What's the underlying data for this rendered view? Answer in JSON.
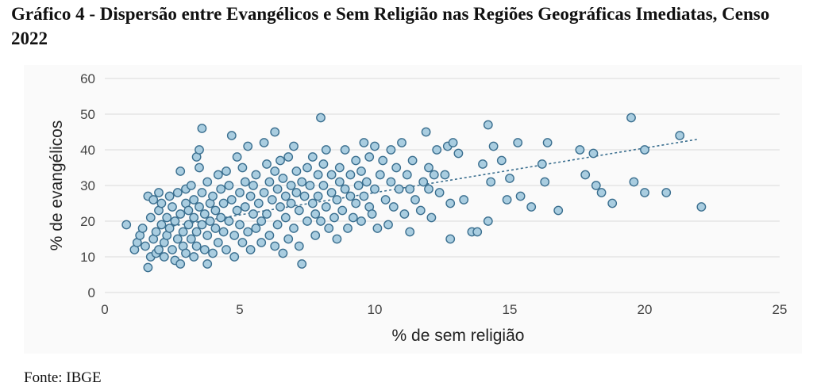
{
  "title": "Gráfico 4 - Dispersão entre Evangélicos e Sem Religião nas Regiões Geográficas Imediatas, Censo 2022",
  "source": "Fonte: IBGE",
  "colors": {
    "point_fill": "#a9cde0",
    "point_stroke": "#3b6f8f",
    "trendline": "#3b6f8f",
    "grid": "#d9d9d9"
  },
  "chart_data": {
    "type": "scatter",
    "xlabel": "% de sem religião",
    "ylabel": "% de evangélicos",
    "xlim": [
      0,
      25
    ],
    "ylim": [
      0,
      60
    ],
    "xticks": [
      0,
      5,
      10,
      15,
      20,
      25
    ],
    "yticks": [
      0,
      10,
      20,
      30,
      40,
      50,
      60
    ],
    "grid": "horizontal",
    "trendline": {
      "style": "dashed",
      "x": [
        2.0,
        22.0
      ],
      "y": [
        18.0,
        43.0
      ]
    },
    "series": [
      {
        "points": [
          [
            0.8,
            19
          ],
          [
            1.1,
            12
          ],
          [
            1.2,
            14
          ],
          [
            1.3,
            16
          ],
          [
            1.4,
            18
          ],
          [
            1.5,
            13
          ],
          [
            1.6,
            27
          ],
          [
            1.6,
            7
          ],
          [
            1.7,
            10
          ],
          [
            1.7,
            21
          ],
          [
            1.8,
            26
          ],
          [
            1.8,
            15
          ],
          [
            1.9,
            11
          ],
          [
            1.9,
            17
          ],
          [
            2.0,
            28
          ],
          [
            2.0,
            23
          ],
          [
            2.0,
            12
          ],
          [
            2.1,
            19
          ],
          [
            2.1,
            25
          ],
          [
            2.2,
            14
          ],
          [
            2.2,
            10
          ],
          [
            2.3,
            21
          ],
          [
            2.3,
            16
          ],
          [
            2.4,
            18
          ],
          [
            2.4,
            27
          ],
          [
            2.5,
            12
          ],
          [
            2.5,
            24
          ],
          [
            2.6,
            9
          ],
          [
            2.6,
            20
          ],
          [
            2.7,
            15
          ],
          [
            2.7,
            28
          ],
          [
            2.8,
            34
          ],
          [
            2.8,
            22
          ],
          [
            2.8,
            8
          ],
          [
            2.9,
            17
          ],
          [
            2.9,
            13
          ],
          [
            3.0,
            25
          ],
          [
            3.0,
            29
          ],
          [
            3.0,
            11
          ],
          [
            3.1,
            19
          ],
          [
            3.1,
            23
          ],
          [
            3.2,
            15
          ],
          [
            3.2,
            30
          ],
          [
            3.3,
            10
          ],
          [
            3.3,
            21
          ],
          [
            3.3,
            26
          ],
          [
            3.4,
            38
          ],
          [
            3.4,
            17
          ],
          [
            3.4,
            13
          ],
          [
            3.5,
            40
          ],
          [
            3.5,
            24
          ],
          [
            3.5,
            35
          ],
          [
            3.6,
            46
          ],
          [
            3.6,
            19
          ],
          [
            3.6,
            28
          ],
          [
            3.7,
            12
          ],
          [
            3.7,
            22
          ],
          [
            3.8,
            8
          ],
          [
            3.8,
            31
          ],
          [
            3.8,
            16
          ],
          [
            3.9,
            25
          ],
          [
            3.9,
            20
          ],
          [
            4.0,
            11
          ],
          [
            4.0,
            27
          ],
          [
            4.1,
            18
          ],
          [
            4.1,
            23
          ],
          [
            4.2,
            33
          ],
          [
            4.2,
            14
          ],
          [
            4.3,
            29
          ],
          [
            4.3,
            21
          ],
          [
            4.4,
            17
          ],
          [
            4.4,
            25
          ],
          [
            4.5,
            12
          ],
          [
            4.5,
            34
          ],
          [
            4.6,
            30
          ],
          [
            4.6,
            20
          ],
          [
            4.7,
            26
          ],
          [
            4.7,
            44
          ],
          [
            4.8,
            16
          ],
          [
            4.8,
            10
          ],
          [
            4.9,
            38
          ],
          [
            4.9,
            23
          ],
          [
            5.0,
            28
          ],
          [
            5.0,
            19
          ],
          [
            5.1,
            35
          ],
          [
            5.1,
            14
          ],
          [
            5.2,
            31
          ],
          [
            5.2,
            24
          ],
          [
            5.3,
            41
          ],
          [
            5.3,
            17
          ],
          [
            5.4,
            27
          ],
          [
            5.4,
            12
          ],
          [
            5.5,
            22
          ],
          [
            5.5,
            30
          ],
          [
            5.6,
            33
          ],
          [
            5.6,
            18
          ],
          [
            5.7,
            25
          ],
          [
            5.8,
            14
          ],
          [
            5.8,
            20
          ],
          [
            5.9,
            42
          ],
          [
            5.9,
            28
          ],
          [
            6.0,
            36
          ],
          [
            6.0,
            22
          ],
          [
            6.1,
            16
          ],
          [
            6.1,
            31
          ],
          [
            6.2,
            26
          ],
          [
            6.3,
            45
          ],
          [
            6.3,
            34
          ],
          [
            6.3,
            13
          ],
          [
            6.4,
            29
          ],
          [
            6.4,
            19
          ],
          [
            6.5,
            37
          ],
          [
            6.5,
            24
          ],
          [
            6.6,
            11
          ],
          [
            6.6,
            32
          ],
          [
            6.7,
            27
          ],
          [
            6.7,
            21
          ],
          [
            6.8,
            38
          ],
          [
            6.8,
            15
          ],
          [
            6.9,
            30
          ],
          [
            6.9,
            25
          ],
          [
            7.0,
            41
          ],
          [
            7.0,
            18
          ],
          [
            7.1,
            34
          ],
          [
            7.1,
            28
          ],
          [
            7.2,
            13
          ],
          [
            7.2,
            23
          ],
          [
            7.3,
            8
          ],
          [
            7.3,
            31
          ],
          [
            7.4,
            27
          ],
          [
            7.5,
            35
          ],
          [
            7.5,
            20
          ],
          [
            7.6,
            30
          ],
          [
            7.7,
            25
          ],
          [
            7.7,
            38
          ],
          [
            7.8,
            22
          ],
          [
            7.8,
            16
          ],
          [
            7.9,
            33
          ],
          [
            7.9,
            27
          ],
          [
            8.0,
            49
          ],
          [
            8.0,
            20
          ],
          [
            8.1,
            30
          ],
          [
            8.1,
            36
          ],
          [
            8.2,
            40
          ],
          [
            8.2,
            24
          ],
          [
            8.3,
            18
          ],
          [
            8.4,
            28
          ],
          [
            8.4,
            33
          ],
          [
            8.5,
            21
          ],
          [
            8.6,
            26
          ],
          [
            8.6,
            15
          ],
          [
            8.7,
            31
          ],
          [
            8.7,
            35
          ],
          [
            8.8,
            23
          ],
          [
            8.9,
            29
          ],
          [
            8.9,
            40
          ],
          [
            9.0,
            18
          ],
          [
            9.1,
            33
          ],
          [
            9.1,
            27
          ],
          [
            9.2,
            21
          ],
          [
            9.3,
            37
          ],
          [
            9.3,
            25
          ],
          [
            9.4,
            30
          ],
          [
            9.5,
            34
          ],
          [
            9.5,
            20
          ],
          [
            9.6,
            42
          ],
          [
            9.6,
            27
          ],
          [
            9.7,
            31
          ],
          [
            9.8,
            24
          ],
          [
            9.8,
            38
          ],
          [
            9.9,
            22
          ],
          [
            10.0,
            41
          ],
          [
            10.0,
            29
          ],
          [
            10.1,
            18
          ],
          [
            10.2,
            33
          ],
          [
            10.3,
            37
          ],
          [
            10.4,
            26
          ],
          [
            10.5,
            19
          ],
          [
            10.6,
            40
          ],
          [
            10.6,
            31
          ],
          [
            10.7,
            24
          ],
          [
            10.8,
            35
          ],
          [
            10.9,
            29
          ],
          [
            11.0,
            42
          ],
          [
            11.1,
            22
          ],
          [
            11.2,
            33
          ],
          [
            11.3,
            17
          ],
          [
            11.3,
            29
          ],
          [
            11.4,
            37
          ],
          [
            11.5,
            26
          ],
          [
            11.7,
            23
          ],
          [
            11.8,
            31
          ],
          [
            11.9,
            45
          ],
          [
            12.0,
            35
          ],
          [
            12.0,
            29
          ],
          [
            12.1,
            21
          ],
          [
            12.2,
            33
          ],
          [
            12.3,
            40
          ],
          [
            12.4,
            28
          ],
          [
            12.6,
            33
          ],
          [
            12.7,
            41
          ],
          [
            12.8,
            25
          ],
          [
            12.8,
            15
          ],
          [
            12.9,
            42
          ],
          [
            13.1,
            39
          ],
          [
            13.3,
            26
          ],
          [
            13.6,
            17
          ],
          [
            13.8,
            17
          ],
          [
            14.0,
            36
          ],
          [
            14.2,
            47
          ],
          [
            14.2,
            20
          ],
          [
            14.3,
            31
          ],
          [
            14.4,
            41
          ],
          [
            14.7,
            37
          ],
          [
            14.9,
            26
          ],
          [
            15.0,
            32
          ],
          [
            15.3,
            42
          ],
          [
            15.4,
            27
          ],
          [
            15.8,
            24
          ],
          [
            16.2,
            36
          ],
          [
            16.3,
            31
          ],
          [
            16.4,
            42
          ],
          [
            16.8,
            23
          ],
          [
            17.6,
            40
          ],
          [
            17.8,
            33
          ],
          [
            18.1,
            39
          ],
          [
            18.2,
            30
          ],
          [
            18.4,
            28
          ],
          [
            18.8,
            25
          ],
          [
            19.5,
            49
          ],
          [
            19.6,
            31
          ],
          [
            20.0,
            28
          ],
          [
            20.0,
            40
          ],
          [
            20.8,
            28
          ],
          [
            21.3,
            44
          ],
          [
            22.1,
            24
          ]
        ]
      }
    ]
  }
}
